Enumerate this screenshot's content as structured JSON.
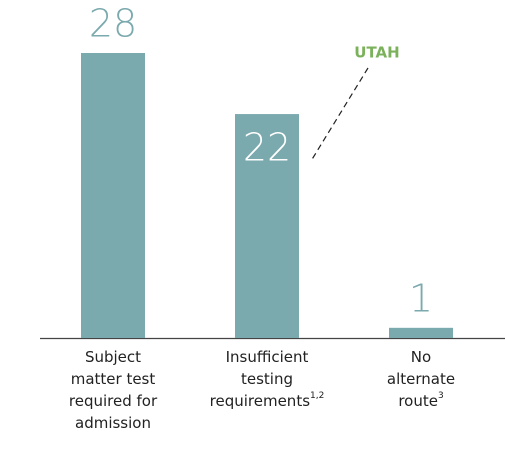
{
  "chart_data": {
    "type": "bar",
    "categories": [
      [
        "Subject",
        "matter test",
        "required for",
        "admission"
      ],
      [
        "Insufficient",
        "testing",
        "requirements"
      ],
      [
        "No",
        "alternate",
        "route"
      ]
    ],
    "category_footnotes": [
      null,
      "1,2",
      "3"
    ],
    "values": [
      28,
      22,
      1
    ],
    "value_label_inside": [
      false,
      true,
      false
    ],
    "color": "#7aa9ae",
    "annotation": {
      "text": "UTAH",
      "category_index": 1,
      "color": "#7ab15a"
    }
  }
}
